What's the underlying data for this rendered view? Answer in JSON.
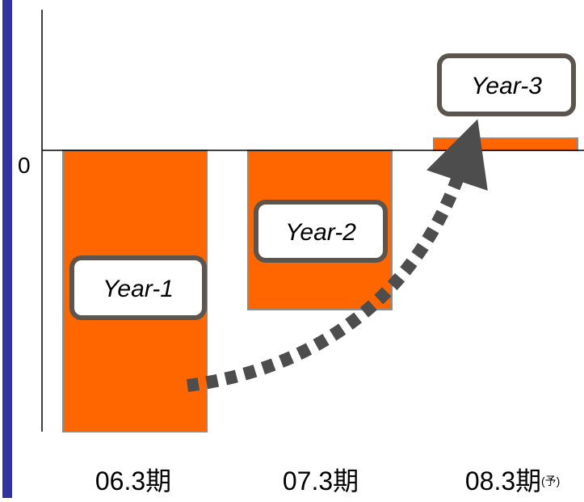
{
  "colors": {
    "bar_fill": "#FF6600",
    "bar_stroke": "#8C8C8C",
    "label_box_stroke": "#5C554D",
    "arrow": "#4D4D4D",
    "accent_bar": "#3333A0",
    "axis": "#000000"
  },
  "chart_data": {
    "type": "bar",
    "categories": [
      "06.3期",
      "07.3期",
      "08.3期"
    ],
    "category_suffixes": [
      "",
      "",
      "(予)"
    ],
    "values": [
      -100,
      -56.6,
      4.3
    ],
    "bar_labels": [
      "Year-1",
      "Year-2",
      "Year-3"
    ],
    "zero_label": "0",
    "title": "",
    "xlabel": "",
    "ylabel": "",
    "ylim": [
      -100,
      50
    ],
    "grid": false,
    "legend": "none",
    "annotation": "dotted arrow rising from Year-1 to Year-3"
  }
}
